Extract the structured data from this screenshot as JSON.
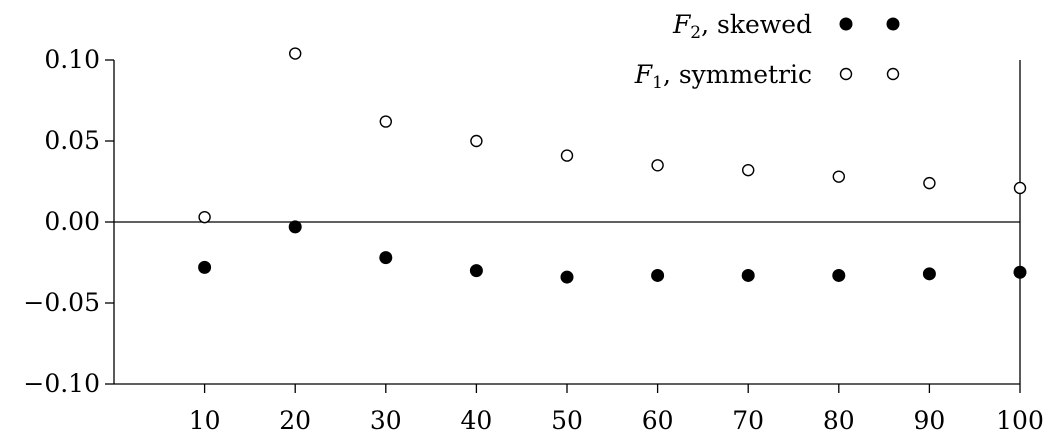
{
  "chart_data": {
    "type": "scatter",
    "x": [
      10,
      20,
      30,
      40,
      50,
      60,
      70,
      80,
      90,
      100
    ],
    "x_tick_labels": [
      "10",
      "20",
      "30",
      "40",
      "50",
      "60",
      "70",
      "80",
      "90",
      "100"
    ],
    "y_tick_labels": [
      "0.10",
      "0.05",
      "0.00",
      "−0.05",
      "−0.10"
    ],
    "y_ticks": [
      0.1,
      0.05,
      0.0,
      -0.05,
      -0.1
    ],
    "xlim": [
      0,
      100
    ],
    "ylim": [
      -0.1,
      0.1
    ],
    "grid": false,
    "zero_line": true,
    "legend_position": "top-right",
    "series": [
      {
        "name": "F2, skewed",
        "label_symbol": "F",
        "label_subscript": "2",
        "label_text": ", skewed",
        "marker": "filled-circle",
        "color": "#000000",
        "values": [
          -0.028,
          -0.003,
          -0.022,
          -0.03,
          -0.034,
          -0.033,
          -0.033,
          -0.033,
          -0.032,
          -0.031
        ]
      },
      {
        "name": "F1, symmetric",
        "label_symbol": "F",
        "label_subscript": "1",
        "label_text": ", symmetric",
        "marker": "open-circle",
        "color": "#000000",
        "values": [
          0.003,
          0.104,
          0.062,
          0.05,
          0.041,
          0.035,
          0.032,
          0.028,
          0.024,
          0.021
        ]
      }
    ]
  }
}
